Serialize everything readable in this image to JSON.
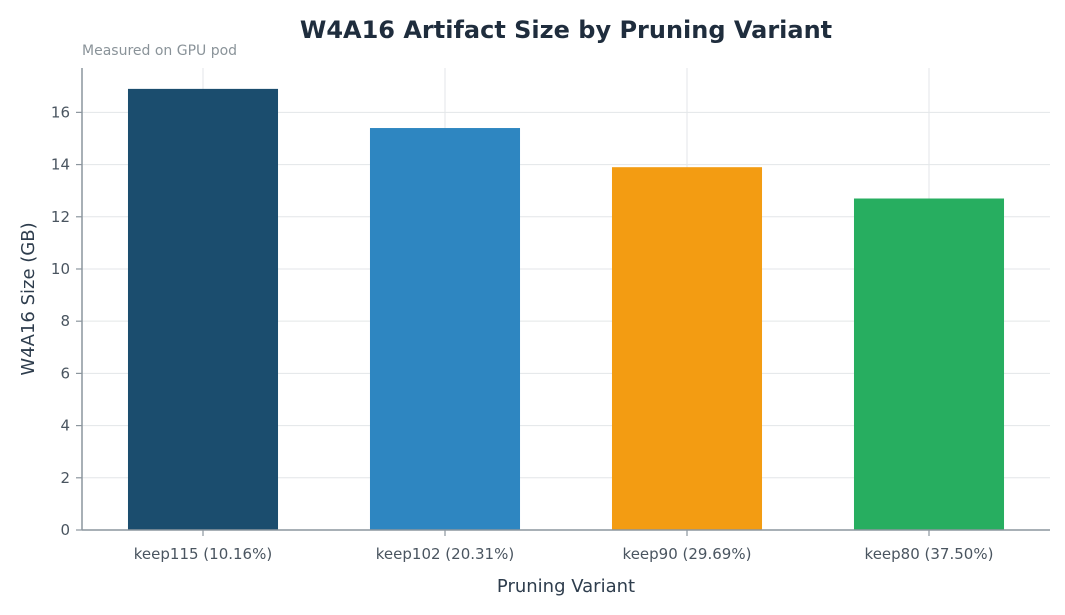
{
  "chart_data": {
    "type": "bar",
    "title": "W4A16 Artifact Size by Pruning Variant",
    "subtitle": "Measured on GPU pod",
    "xlabel": "Pruning Variant",
    "ylabel": "W4A16 Size (GB)",
    "categories": [
      "keep115 (10.16%)",
      "keep102 (20.31%)",
      "keep90 (29.69%)",
      "keep80 (37.50%)"
    ],
    "values": [
      16.9,
      15.4,
      13.9,
      12.7
    ],
    "colors": [
      "#1b4d6e",
      "#2e86c1",
      "#f39c12",
      "#27ae60"
    ],
    "ylim": [
      0,
      17.7
    ],
    "yticks": [
      0,
      2,
      4,
      6,
      8,
      10,
      12,
      14,
      16
    ],
    "grid": true,
    "legend": "none"
  }
}
